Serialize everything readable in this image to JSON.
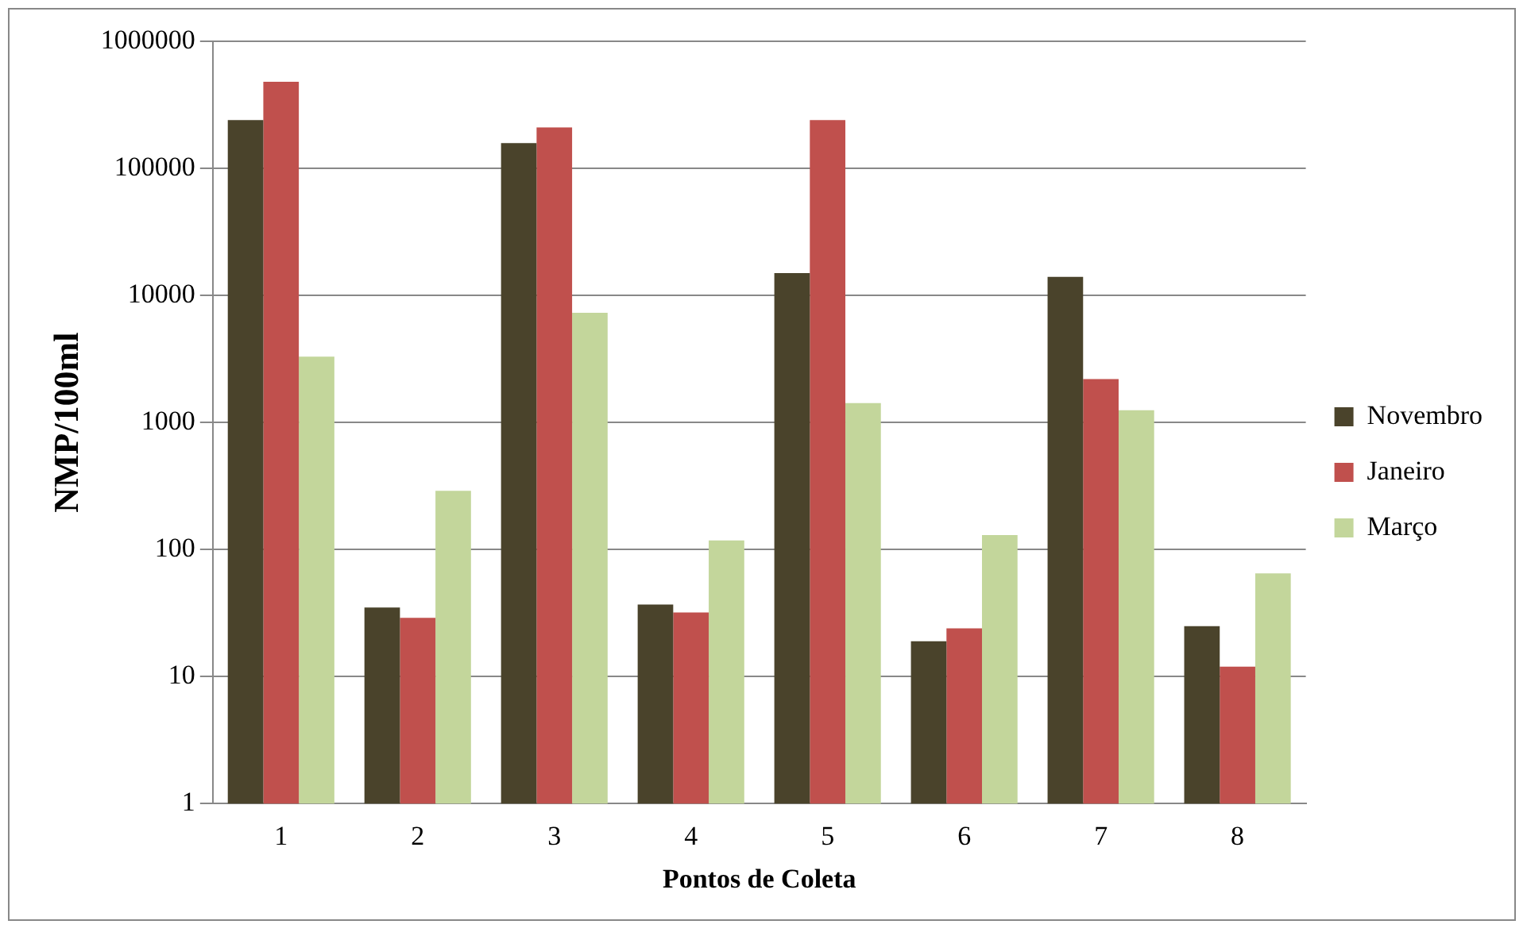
{
  "chart_data": {
    "type": "bar",
    "xlabel": "Pontos de Coleta",
    "ylabel": "NMP/100ml",
    "categories": [
      "1",
      "2",
      "3",
      "4",
      "5",
      "6",
      "7",
      "8"
    ],
    "series": [
      {
        "name": "Novembro",
        "color": "#4a432b",
        "values": [
          240000,
          35,
          158000,
          37,
          15000,
          19,
          14000,
          25
        ]
      },
      {
        "name": "Janeiro",
        "color": "#c0504d",
        "values": [
          480000,
          29,
          210000,
          32,
          240000,
          24,
          2200,
          12
        ]
      },
      {
        "name": "Março",
        "color": "#c3d69b",
        "values": [
          3300,
          290,
          7300,
          118,
          1420,
          130,
          1250,
          65
        ]
      }
    ],
    "log": "y",
    "ylim": [
      1,
      1000000
    ],
    "yticks": [
      1,
      10,
      100,
      1000,
      10000,
      100000,
      1000000
    ],
    "grid": "y",
    "legend": "right"
  }
}
